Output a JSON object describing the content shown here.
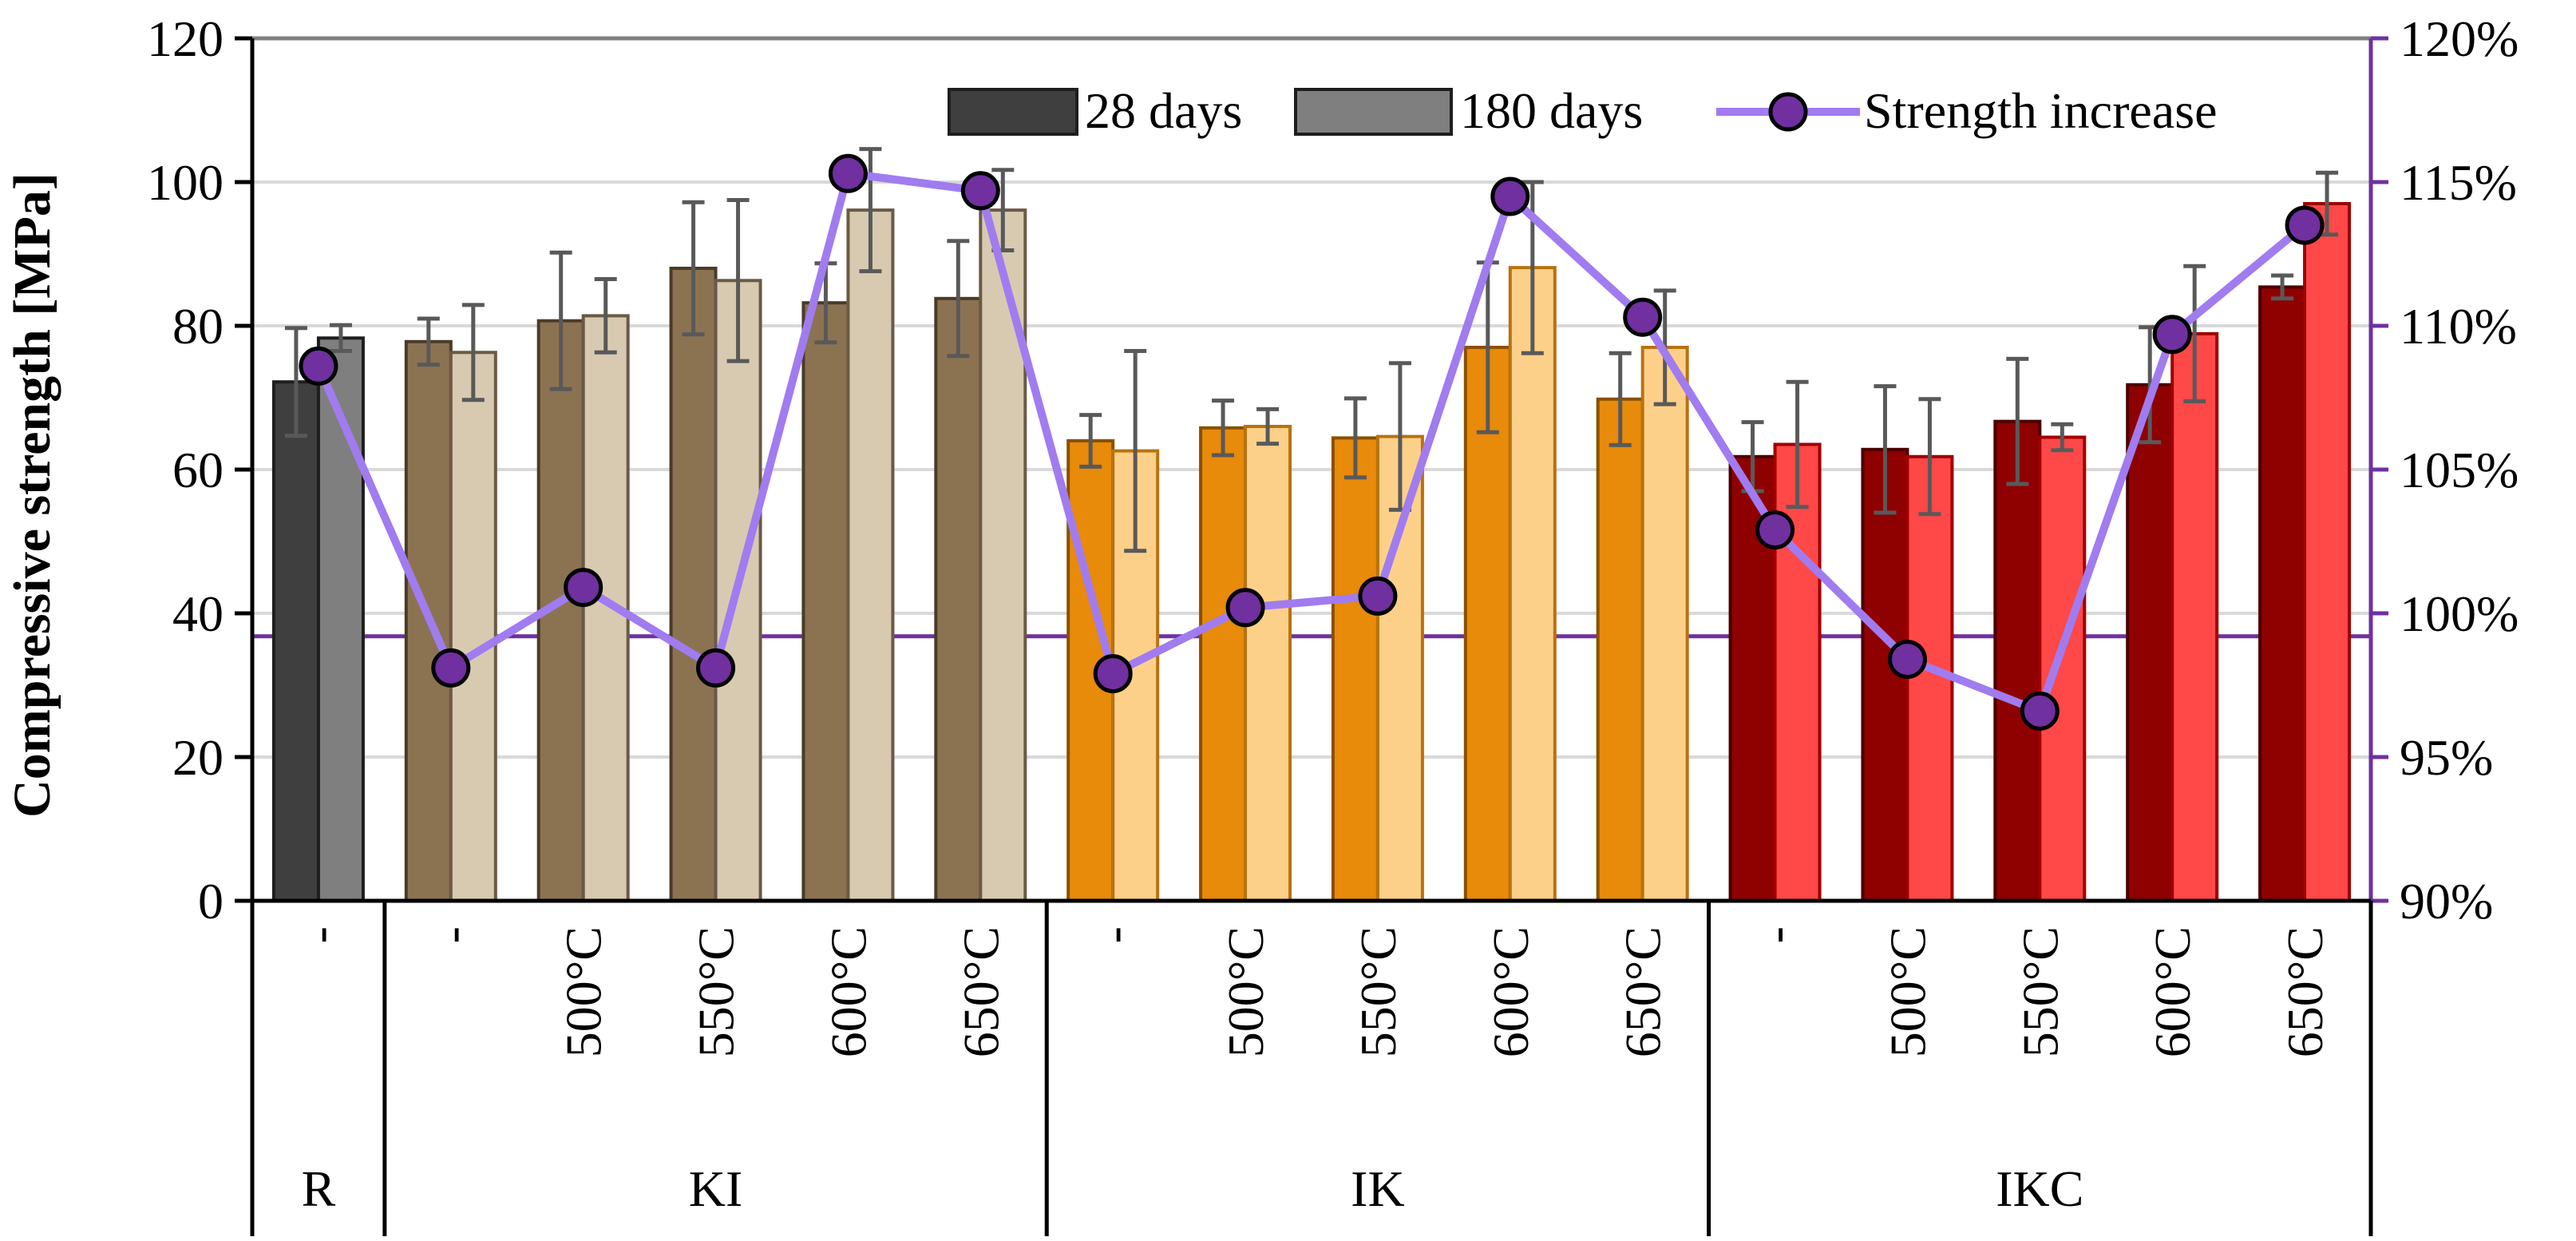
{
  "chart_data": {
    "type": "bar",
    "ylabel": "Compressive strength [MPa]",
    "ylim": [
      0,
      120
    ],
    "yticks": [
      "0",
      "20",
      "40",
      "60",
      "80",
      "100",
      "120"
    ],
    "y2lim": [
      90,
      120
    ],
    "y2ticks": [
      "90%",
      "95%",
      "100%",
      "105%",
      "110%",
      "115%",
      "120%"
    ],
    "y2_reference_line": 99.2,
    "grid": true,
    "legend_position": "top-right",
    "categories": [
      {
        "group": "R",
        "label": "-",
        "d28": 72.2,
        "d28_err": 7.5,
        "d180": 78.3,
        "d180_err": 1.8,
        "increase": 108.6
      },
      {
        "group": "KI",
        "label": "-",
        "d28": 77.8,
        "d28_err": 3.2,
        "d180": 76.3,
        "d180_err": 6.6,
        "increase": 98.1
      },
      {
        "group": "KI",
        "label": "500°C",
        "d28": 80.7,
        "d28_err": 9.5,
        "d180": 81.4,
        "d180_err": 5.1,
        "increase": 100.9
      },
      {
        "group": "KI",
        "label": "550°C",
        "d28": 88.0,
        "d28_err": 9.2,
        "d180": 86.3,
        "d180_err": 11.2,
        "increase": 98.1
      },
      {
        "group": "KI",
        "label": "600°C",
        "d28": 83.2,
        "d28_err": 5.5,
        "d180": 96.1,
        "d180_err": 8.5,
        "increase": 115.3
      },
      {
        "group": "KI",
        "label": "650°C",
        "d28": 83.8,
        "d28_err": 8.0,
        "d180": 96.1,
        "d180_err": 5.6,
        "increase": 114.7
      },
      {
        "group": "IK",
        "label": "-",
        "d28": 64.0,
        "d28_err": 3.6,
        "d180": 62.6,
        "d180_err": 13.9,
        "increase": 97.9
      },
      {
        "group": "IK",
        "label": "500°C",
        "d28": 65.8,
        "d28_err": 3.8,
        "d180": 66.0,
        "d180_err": 2.4,
        "increase": 100.2
      },
      {
        "group": "IK",
        "label": "550°C",
        "d28": 64.4,
        "d28_err": 5.5,
        "d180": 64.6,
        "d180_err": 10.2,
        "increase": 100.6
      },
      {
        "group": "IK",
        "label": "600°C",
        "d28": 77.0,
        "d28_err": 11.8,
        "d180": 88.1,
        "d180_err": 11.9,
        "increase": 114.5
      },
      {
        "group": "IK",
        "label": "650°C",
        "d28": 69.8,
        "d28_err": 6.4,
        "d180": 77.0,
        "d180_err": 7.9,
        "increase": 110.3
      },
      {
        "group": "IKC",
        "label": "-",
        "d28": 61.8,
        "d28_err": 4.8,
        "d180": 63.5,
        "d180_err": 8.7,
        "increase": 102.9
      },
      {
        "group": "IKC",
        "label": "500°C",
        "d28": 62.8,
        "d28_err": 8.8,
        "d180": 61.8,
        "d180_err": 8.0,
        "increase": 98.4
      },
      {
        "group": "IKC",
        "label": "550°C",
        "d28": 66.7,
        "d28_err": 8.7,
        "d180": 64.5,
        "d180_err": 1.8,
        "increase": 96.6
      },
      {
        "group": "IKC",
        "label": "600°C",
        "d28": 71.8,
        "d28_err": 8.0,
        "d180": 78.9,
        "d180_err": 9.4,
        "increase": 109.7
      },
      {
        "group": "IKC",
        "label": "650°C",
        "d28": 85.4,
        "d28_err": 1.6,
        "d180": 97.0,
        "d180_err": 4.3,
        "increase": 113.5
      }
    ],
    "groups": [
      {
        "name": "R",
        "start": 0,
        "end": 0
      },
      {
        "name": "KI",
        "start": 1,
        "end": 5
      },
      {
        "name": "IK",
        "start": 6,
        "end": 10
      },
      {
        "name": "IKC",
        "start": 11,
        "end": 15
      }
    ],
    "group_colors": {
      "R": {
        "d28": "#3f3f3f",
        "d28_edge": "#1e1e1e",
        "d180": "#7f7f7f",
        "d180_edge": "#1e1e1e"
      },
      "KI": {
        "d28": "#8b7352",
        "d28_edge": "#4a3b28",
        "d180": "#d8cab1",
        "d180_edge": "#6a5a45"
      },
      "IK": {
        "d28": "#e88a0a",
        "d28_edge": "#8a5000",
        "d180": "#fdd08a",
        "d180_edge": "#b8720f"
      },
      "IKC": {
        "d28": "#8f0000",
        "d28_edge": "#4a0000",
        "d180": "#ff4848",
        "d180_edge": "#a00000"
      }
    },
    "line_color": "#a07cf0",
    "marker_color": "#7030a0",
    "axis2_color": "#7030a0",
    "errorbar_color": "#595959",
    "legend": [
      {
        "key": "d28",
        "label": "28 days",
        "swatch": "#3f3f3f",
        "swatch_edge": "#1e1e1e"
      },
      {
        "key": "d180",
        "label": "180 days",
        "swatch": "#7f7f7f",
        "swatch_edge": "#1e1e1e"
      },
      {
        "key": "line",
        "label": "Strength increase"
      }
    ]
  }
}
